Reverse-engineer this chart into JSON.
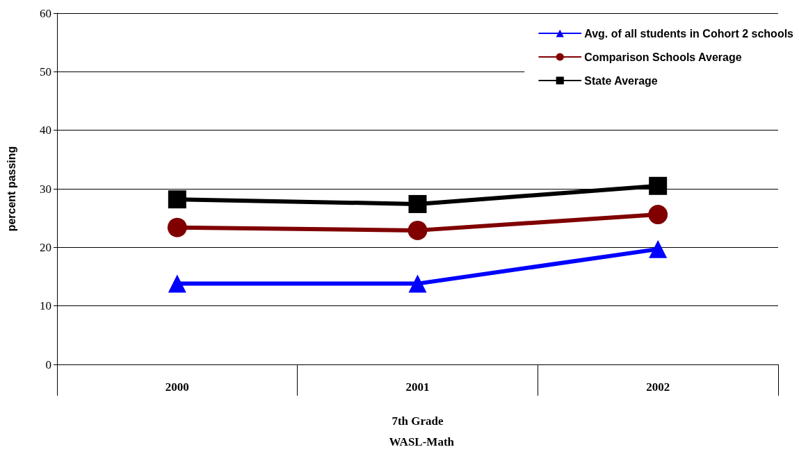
{
  "chart_data": {
    "type": "line",
    "xlabel": "7th Grade",
    "ylabel": "percent passing",
    "annotations": [
      "WASL-Math"
    ],
    "categories": [
      "2000",
      "2001",
      "2002"
    ],
    "series": [
      {
        "name": "Avg. of all students in Cohort 2 schools",
        "color": "#0000ff",
        "marker": "triangle",
        "values": [
          13.8,
          13.8,
          19.7
        ]
      },
      {
        "name": "Comparison Schools Average",
        "color": "#800000",
        "marker": "circle",
        "values": [
          23.4,
          22.9,
          25.6
        ]
      },
      {
        "name": "State Average",
        "color": "#000000",
        "marker": "square",
        "values": [
          28.2,
          27.4,
          30.5
        ]
      }
    ],
    "ylim": [
      0,
      60
    ],
    "yticks": [
      0,
      10,
      20,
      30,
      40,
      50,
      60
    ],
    "grid": "y",
    "legend": "top right",
    "line_style": "solid"
  }
}
